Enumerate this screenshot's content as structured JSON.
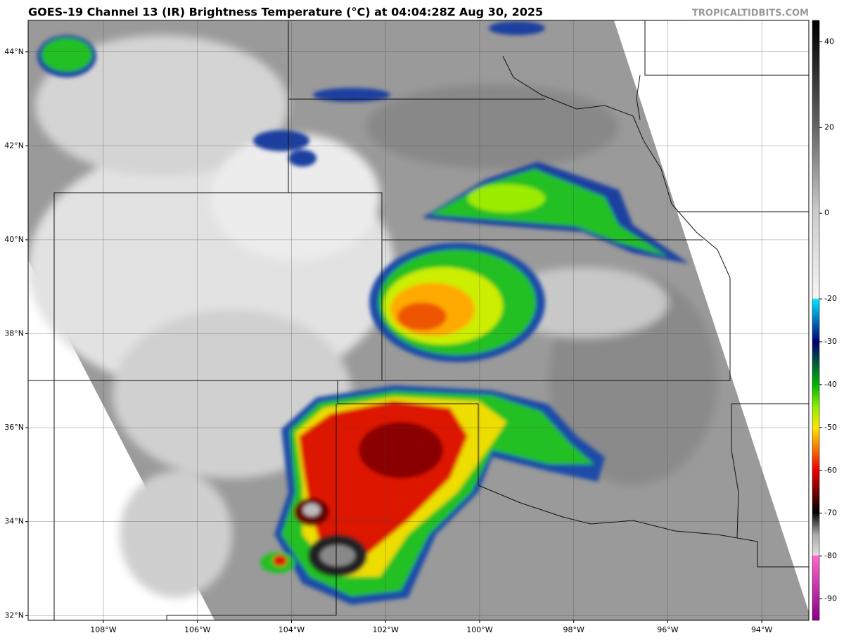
{
  "title": "GOES-19 Channel 13 (IR) Brightness Temperature (°C) at 04:04:28Z Aug 30, 2025",
  "credit": "TROPICALTIDBITS.COM",
  "map": {
    "lonlim": [
      -109.6,
      -93.0
    ],
    "latlim": [
      31.9,
      44.67
    ],
    "lonticks": [
      {
        "value": -108,
        "label": "108°W"
      },
      {
        "value": -106,
        "label": "106°W"
      },
      {
        "value": -104,
        "label": "104°W"
      },
      {
        "value": -102,
        "label": "102°W"
      },
      {
        "value": -100,
        "label": "100°W"
      },
      {
        "value": -98,
        "label": "98°W"
      },
      {
        "value": -96,
        "label": "96°W"
      },
      {
        "value": -94,
        "label": "94°W"
      }
    ],
    "latticks": [
      {
        "value": 44,
        "label": "44°N"
      },
      {
        "value": 42,
        "label": "42°N"
      },
      {
        "value": 40,
        "label": "40°N"
      },
      {
        "value": 38,
        "label": "38°N"
      },
      {
        "value": 36,
        "label": "36°N"
      },
      {
        "value": 34,
        "label": "34°N"
      },
      {
        "value": 32,
        "label": "32°N"
      }
    ],
    "grid": true
  },
  "colorbar": {
    "lim": [
      -95,
      45
    ],
    "ticks": [
      40,
      20,
      0,
      -20,
      -30,
      -40,
      -50,
      -60,
      -70,
      -80,
      -90
    ]
  }
}
